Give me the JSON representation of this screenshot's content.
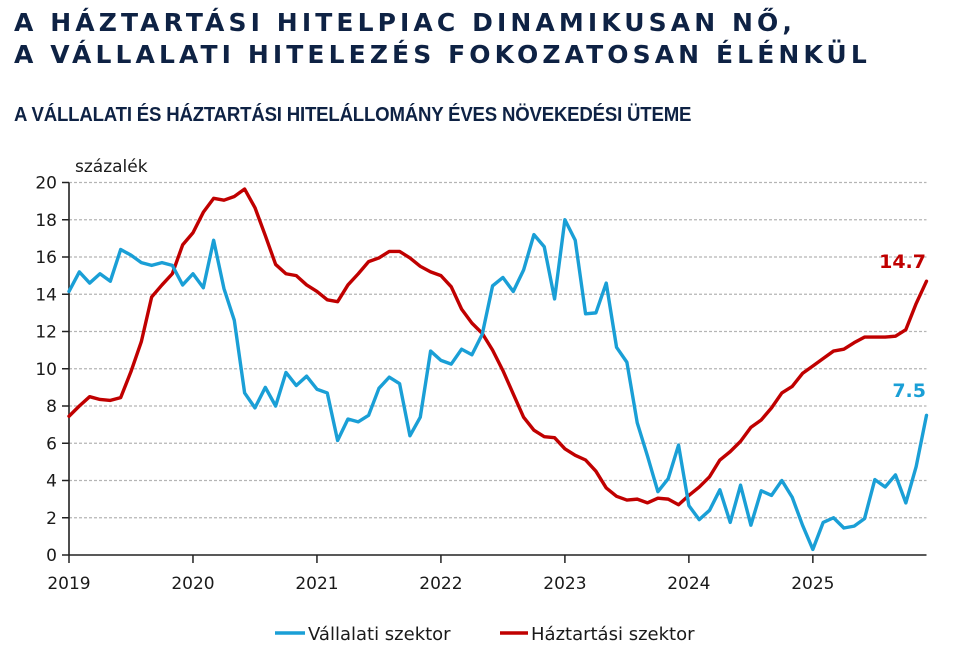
{
  "header": {
    "title_line1": "A HÁZTARTÁSI HITELPIAC DINAMIKUSAN NŐ,",
    "title_line2": "A VÁLLALATI HITELEZÉS FOKOZATOSAN ÉLÉNKÜL"
  },
  "chart_data": {
    "type": "line",
    "title": "A VÁLLALATI ÉS HÁZTARTÁSI HITELÁLLOMÁNY ÉVES NÖVEKEDÉSI ÜTEME",
    "ylabel": "százalék",
    "xlabel": "",
    "ylim": [
      0,
      20
    ],
    "yticks": [
      0,
      2,
      4,
      6,
      8,
      10,
      12,
      14,
      16,
      18,
      20
    ],
    "ytick_labels": [
      "0",
      "2",
      "4",
      "6",
      "8",
      "10",
      "12",
      "14",
      "16",
      "18",
      "20"
    ],
    "x_start": "2019-01",
    "x_frequency": "monthly",
    "xtick_labels": [
      "2019",
      "2020",
      "2021",
      "2022",
      "2023",
      "2024",
      "2025"
    ],
    "grid": "horizontal dashed",
    "legend_position": "bottom",
    "series": [
      {
        "name": "Vállalati szektor",
        "color": "#1a9fd6",
        "end_label": "7.5",
        "values": [
          14.15,
          15.2,
          14.6,
          15.1,
          14.7,
          16.4,
          16.1,
          15.7,
          15.55,
          15.7,
          15.55,
          14.5,
          15.1,
          14.35,
          16.9,
          14.3,
          12.6,
          8.7,
          7.9,
          9.0,
          8.0,
          9.8,
          9.1,
          9.6,
          8.9,
          8.7,
          6.15,
          7.3,
          7.15,
          7.5,
          8.95,
          9.55,
          9.2,
          6.4,
          7.4,
          10.95,
          10.45,
          10.25,
          11.05,
          10.75,
          11.85,
          14.45,
          14.9,
          14.15,
          15.3,
          17.2,
          16.55,
          13.75,
          18.0,
          16.9,
          12.95,
          13.0,
          14.6,
          11.15,
          10.35,
          7.1,
          5.3,
          3.4,
          4.1,
          5.9,
          2.65,
          1.9,
          2.4,
          3.5,
          1.75,
          3.75,
          1.6,
          3.45,
          3.2,
          4.0,
          3.1,
          1.6,
          0.3,
          1.75,
          2.0,
          1.45,
          1.55,
          1.95,
          4.05,
          3.65,
          4.3,
          2.8,
          4.75,
          7.5
        ]
      },
      {
        "name": "Háztartási szektor",
        "color": "#c00000",
        "end_label": "14.7",
        "values": [
          7.45,
          8.0,
          8.5,
          8.35,
          8.3,
          8.45,
          9.85,
          11.45,
          13.85,
          14.5,
          15.1,
          16.65,
          17.3,
          18.4,
          19.15,
          19.05,
          19.25,
          19.65,
          18.65,
          17.15,
          15.6,
          15.1,
          15.0,
          14.5,
          14.15,
          13.7,
          13.6,
          14.5,
          15.1,
          15.75,
          15.95,
          16.3,
          16.3,
          15.95,
          15.5,
          15.2,
          15.0,
          14.4,
          13.2,
          12.45,
          11.9,
          11.0,
          9.9,
          8.65,
          7.4,
          6.7,
          6.35,
          6.3,
          5.7,
          5.35,
          5.1,
          4.5,
          3.6,
          3.15,
          2.95,
          3.0,
          2.8,
          3.05,
          3.0,
          2.7,
          3.2,
          3.65,
          4.2,
          5.1,
          5.55,
          6.1,
          6.85,
          7.25,
          7.9,
          8.7,
          9.05,
          9.75,
          10.15,
          10.55,
          10.95,
          11.05,
          11.4,
          11.7,
          11.7,
          11.7,
          11.75,
          12.1,
          13.5,
          14.7
        ]
      }
    ]
  }
}
